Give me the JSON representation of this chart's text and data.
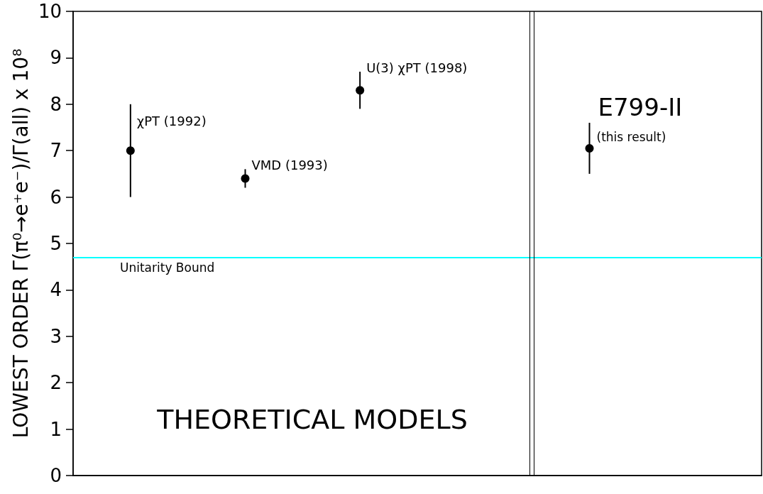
{
  "chart_data": {
    "type": "scatter",
    "ylabel": "LOWEST ORDER Γ(π⁰→e⁺e⁻)/Γ(all) x 10⁸",
    "categories": [
      null,
      null,
      null,
      null,
      null,
      null
    ],
    "series": [
      {
        "name": "χPT (1992)",
        "color": "#000000",
        "values": [
          7.0,
          null,
          null,
          null,
          null,
          null
        ],
        "errors": [
          1.0,
          null,
          null,
          null,
          null,
          null
        ]
      },
      {
        "name": "VMD (1993)",
        "color": "#000000",
        "values": [
          null,
          6.4,
          null,
          null,
          null,
          null
        ],
        "errors": [
          null,
          0.2,
          null,
          null,
          null,
          null
        ]
      },
      {
        "name": "U(3) χPT (1998)",
        "color": "#000000",
        "values": [
          null,
          null,
          8.3,
          null,
          null,
          null
        ],
        "errors": [
          null,
          null,
          0.4,
          null,
          null,
          null
        ]
      },
      {
        "name": "E799-II",
        "color": "#000000",
        "values": [
          null,
          null,
          null,
          null,
          7.05,
          null
        ],
        "errors": [
          null,
          null,
          null,
          null,
          0.55,
          null
        ]
      }
    ],
    "ylim": [
      0,
      10
    ],
    "yticks": [
      0,
      1,
      2,
      3,
      4,
      5,
      6,
      7,
      8,
      9,
      10
    ],
    "tick_labels": "y",
    "marker": "circle",
    "ref_lines": [
      {
        "axis": "y",
        "value": 4.7,
        "label": "Unitarity Bound",
        "color": "#00ffff"
      }
    ],
    "annotations": [
      "THEORETICAL MODELS",
      "(this result)"
    ]
  }
}
